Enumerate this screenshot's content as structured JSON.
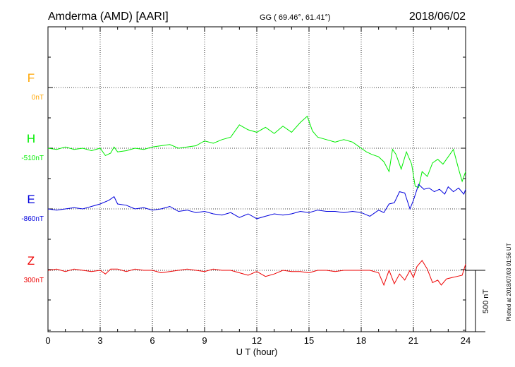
{
  "header": {
    "station": "Amderma (AMD)  [AARI]",
    "coords": "GG ( 69.46°,  61.41°)",
    "date": "2018/06/02"
  },
  "footer": {
    "plotted": "Plotted at 2018/07/03 01:56 UT"
  },
  "chart_data": {
    "type": "line",
    "xlabel": "U T (hour)",
    "xlim": [
      0,
      24
    ],
    "xticks": [
      "0",
      "3",
      "6",
      "9",
      "12",
      "15",
      "18",
      "21",
      "24"
    ],
    "grid": true,
    "scale_bar": {
      "label": "500 nT",
      "value": 500
    },
    "series": [
      {
        "name": "F",
        "baseline": "0nT",
        "color": "#ffa500",
        "x": [],
        "y": []
      },
      {
        "name": "H",
        "baseline": "-510nT",
        "color": "#00ee00",
        "x": [
          0,
          0.5,
          1,
          1.5,
          2,
          2.5,
          3,
          3.3,
          3.6,
          3.8,
          4,
          4.5,
          5,
          5.5,
          6,
          6.5,
          7,
          7.5,
          8,
          8.5,
          9,
          9.5,
          10,
          10.5,
          11,
          11.5,
          12,
          12.5,
          13,
          13.5,
          14,
          14.5,
          14.9,
          15.2,
          15.5,
          16,
          16.5,
          17,
          17.5,
          18,
          18.3,
          18.6,
          19,
          19.3,
          19.6,
          19.8,
          20,
          20.3,
          20.6,
          20.9,
          21.1,
          21.3,
          21.5,
          21.8,
          22.1,
          22.4,
          22.7,
          23,
          23.3,
          23.6,
          23.8,
          24
        ],
        "y": [
          -510,
          -520,
          -500,
          -520,
          -510,
          -530,
          -510,
          -570,
          -550,
          -500,
          -540,
          -530,
          -510,
          -520,
          -500,
          -490,
          -480,
          -510,
          -500,
          -490,
          -450,
          -470,
          -440,
          -420,
          -320,
          -360,
          -380,
          -340,
          -390,
          -330,
          -380,
          -300,
          -250,
          -370,
          -420,
          -440,
          -460,
          -440,
          -460,
          -510,
          -540,
          -560,
          -580,
          -620,
          -700,
          -520,
          -560,
          -680,
          -540,
          -640,
          -820,
          -830,
          -700,
          -740,
          -630,
          -600,
          -640,
          -580,
          -520,
          -680,
          -780,
          -700
        ],
        "min": -830,
        "max": -250
      },
      {
        "name": "E",
        "baseline": "-860nT",
        "color": "#0000dd",
        "x": [
          0,
          0.5,
          1,
          1.5,
          2,
          2.5,
          3,
          3.5,
          3.8,
          4,
          4.5,
          5,
          5.5,
          6,
          6.5,
          7,
          7.5,
          8,
          8.5,
          9,
          9.5,
          10,
          10.5,
          11,
          11.5,
          12,
          12.5,
          13,
          13.5,
          14,
          14.5,
          15,
          15.5,
          16,
          16.5,
          17,
          17.5,
          18,
          18.5,
          19,
          19.3,
          19.6,
          19.9,
          20.2,
          20.5,
          20.8,
          21,
          21.3,
          21.6,
          21.9,
          22.2,
          22.5,
          22.8,
          23,
          23.3,
          23.6,
          23.9,
          24
        ],
        "y": [
          -860,
          -870,
          -860,
          -850,
          -860,
          -840,
          -820,
          -790,
          -760,
          -820,
          -830,
          -860,
          -850,
          -870,
          -860,
          -840,
          -880,
          -870,
          -890,
          -880,
          -900,
          -910,
          -890,
          -930,
          -900,
          -940,
          -920,
          -900,
          -910,
          -900,
          -880,
          -890,
          -870,
          -880,
          -880,
          -890,
          -880,
          -890,
          -920,
          -870,
          -890,
          -820,
          -810,
          -720,
          -730,
          -860,
          -790,
          -660,
          -700,
          -690,
          -720,
          -700,
          -740,
          -680,
          -720,
          -690,
          -740,
          -700
        ],
        "min": -940,
        "max": -660
      },
      {
        "name": "Z",
        "baseline": "300nT",
        "color": "#ee0000",
        "x": [
          0,
          0.5,
          1,
          1.5,
          2,
          2.5,
          3,
          3.3,
          3.6,
          4,
          4.5,
          5,
          5.5,
          6,
          6.5,
          7,
          7.5,
          8,
          8.5,
          9,
          9.5,
          10,
          10.5,
          11,
          11.5,
          12,
          12.5,
          13,
          13.5,
          14,
          14.5,
          15,
          15.5,
          16,
          16.5,
          17,
          17.5,
          18,
          18.5,
          19,
          19.3,
          19.6,
          19.9,
          20.2,
          20.5,
          20.8,
          21,
          21.2,
          21.5,
          21.8,
          22.1,
          22.4,
          22.6,
          22.9,
          23.2,
          23.5,
          23.8,
          24
        ],
        "y": [
          300,
          310,
          290,
          310,
          300,
          290,
          300,
          270,
          310,
          310,
          290,
          310,
          300,
          300,
          280,
          290,
          300,
          310,
          300,
          290,
          310,
          300,
          300,
          280,
          260,
          290,
          250,
          270,
          300,
          290,
          290,
          280,
          300,
          300,
          290,
          300,
          300,
          300,
          300,
          280,
          180,
          300,
          190,
          270,
          220,
          300,
          240,
          330,
          380,
          310,
          200,
          220,
          180,
          230,
          240,
          250,
          260,
          350
        ],
        "min": 180,
        "max": 380
      }
    ]
  }
}
